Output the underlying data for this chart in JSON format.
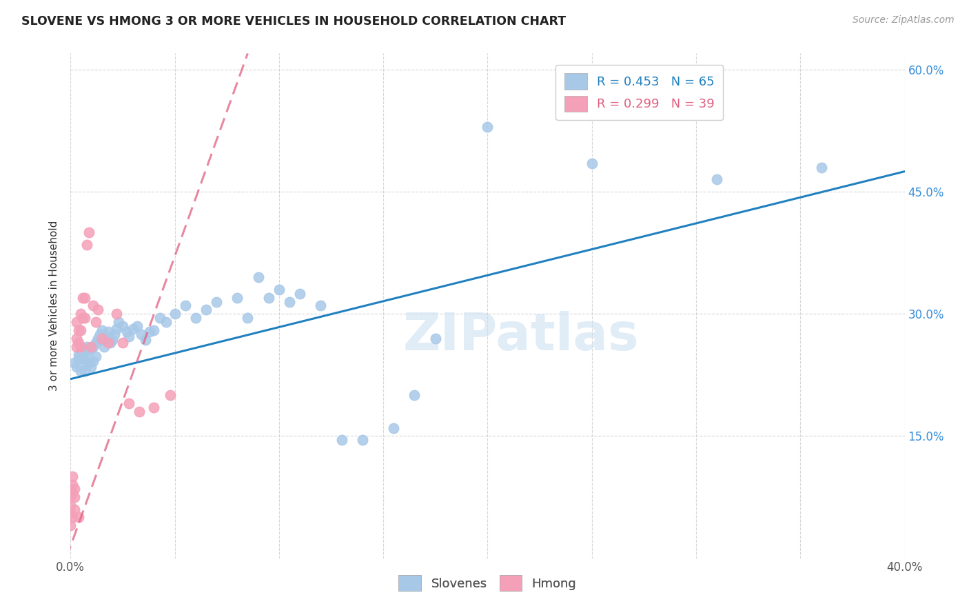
{
  "title": "SLOVENE VS HMONG 3 OR MORE VEHICLES IN HOUSEHOLD CORRELATION CHART",
  "source": "Source: ZipAtlas.com",
  "ylabel": "3 or more Vehicles in Household",
  "xlim": [
    0.0,
    0.4
  ],
  "ylim": [
    0.0,
    0.62
  ],
  "slovene_R": 0.453,
  "slovene_N": 65,
  "hmong_R": 0.299,
  "hmong_N": 39,
  "slovene_color": "#a8c8e8",
  "slovene_line_color": "#2080c0",
  "hmong_color": "#f4a0b8",
  "hmong_line_color": "#e06080",
  "watermark": "ZIPatlas",
  "background_color": "#ffffff",
  "grid_color": "#cccccc",
  "slovene_x": [
    0.002,
    0.003,
    0.004,
    0.004,
    0.005,
    0.005,
    0.006,
    0.006,
    0.007,
    0.007,
    0.008,
    0.008,
    0.009,
    0.009,
    0.01,
    0.01,
    0.011,
    0.011,
    0.012,
    0.012,
    0.013,
    0.014,
    0.015,
    0.015,
    0.016,
    0.017,
    0.018,
    0.019,
    0.02,
    0.021,
    0.022,
    0.023,
    0.025,
    0.027,
    0.028,
    0.03,
    0.032,
    0.034,
    0.036,
    0.038,
    0.04,
    0.043,
    0.046,
    0.05,
    0.055,
    0.06,
    0.065,
    0.07,
    0.08,
    0.085,
    0.09,
    0.095,
    0.1,
    0.105,
    0.11,
    0.12,
    0.13,
    0.14,
    0.155,
    0.165,
    0.175,
    0.2,
    0.25,
    0.31,
    0.36
  ],
  "slovene_y": [
    0.24,
    0.235,
    0.245,
    0.25,
    0.23,
    0.25,
    0.245,
    0.255,
    0.23,
    0.248,
    0.238,
    0.26,
    0.24,
    0.255,
    0.235,
    0.258,
    0.242,
    0.26,
    0.248,
    0.265,
    0.27,
    0.275,
    0.268,
    0.28,
    0.26,
    0.272,
    0.278,
    0.265,
    0.268,
    0.275,
    0.282,
    0.29,
    0.285,
    0.278,
    0.272,
    0.282,
    0.285,
    0.275,
    0.268,
    0.278,
    0.28,
    0.295,
    0.29,
    0.3,
    0.31,
    0.295,
    0.305,
    0.315,
    0.32,
    0.295,
    0.345,
    0.32,
    0.33,
    0.315,
    0.325,
    0.31,
    0.145,
    0.145,
    0.16,
    0.2,
    0.27,
    0.53,
    0.485,
    0.465,
    0.48
  ],
  "hmong_x": [
    0.0,
    0.0,
    0.0,
    0.0,
    0.0,
    0.001,
    0.001,
    0.001,
    0.001,
    0.002,
    0.002,
    0.002,
    0.003,
    0.003,
    0.003,
    0.004,
    0.004,
    0.004,
    0.005,
    0.005,
    0.005,
    0.006,
    0.006,
    0.007,
    0.007,
    0.008,
    0.009,
    0.01,
    0.011,
    0.012,
    0.013,
    0.015,
    0.018,
    0.022,
    0.025,
    0.028,
    0.033,
    0.04,
    0.048
  ],
  "hmong_y": [
    0.04,
    0.055,
    0.065,
    0.075,
    0.085,
    0.08,
    0.09,
    0.1,
    0.05,
    0.075,
    0.085,
    0.06,
    0.26,
    0.27,
    0.29,
    0.05,
    0.265,
    0.28,
    0.26,
    0.28,
    0.3,
    0.295,
    0.32,
    0.295,
    0.32,
    0.385,
    0.4,
    0.26,
    0.31,
    0.29,
    0.305,
    0.27,
    0.265,
    0.3,
    0.265,
    0.19,
    0.18,
    0.185,
    0.2
  ],
  "slovene_line_x0": 0.0,
  "slovene_line_y0": 0.22,
  "slovene_line_x1": 0.4,
  "slovene_line_y1": 0.475,
  "hmong_line_x0": -0.002,
  "hmong_line_y0": 0.0,
  "hmong_line_x1": 0.085,
  "hmong_line_y1": 0.62
}
